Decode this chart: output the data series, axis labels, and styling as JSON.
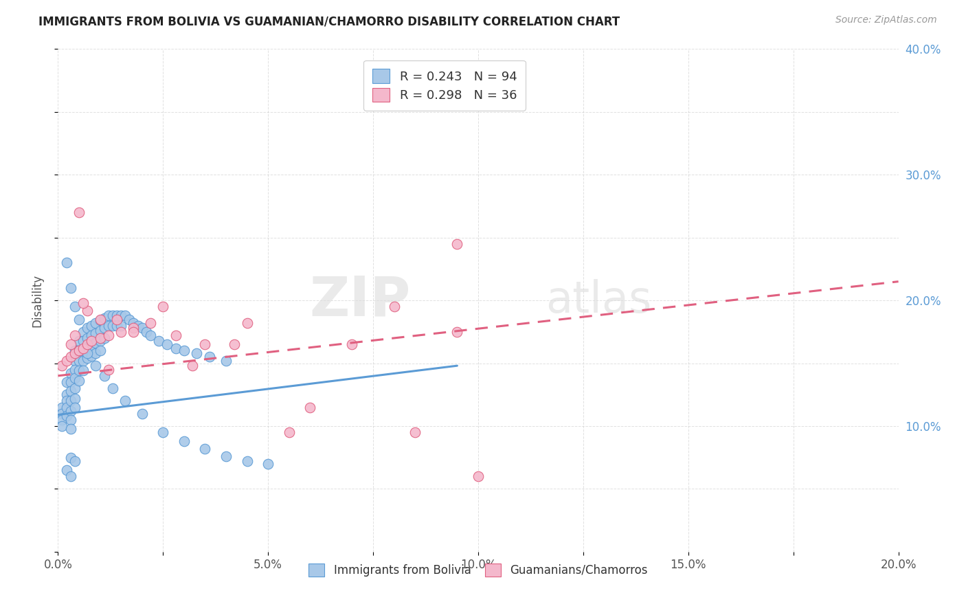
{
  "title": "IMMIGRANTS FROM BOLIVIA VS GUAMANIAN/CHAMORRO DISABILITY CORRELATION CHART",
  "source": "Source: ZipAtlas.com",
  "ylabel": "Disability",
  "xlim": [
    0.0,
    0.2
  ],
  "ylim": [
    0.0,
    0.4
  ],
  "watermark_line1": "ZIP",
  "watermark_line2": "atlas",
  "legend_r1": "R = 0.243",
  "legend_n1": "N = 94",
  "legend_r2": "R = 0.298",
  "legend_n2": "N = 36",
  "color_blue_fill": "#a8c8e8",
  "color_blue_edge": "#5b9bd5",
  "color_pink_fill": "#f4b8cc",
  "color_pink_edge": "#e06080",
  "color_line_blue": "#5b9bd5",
  "color_line_pink": "#e06080",
  "bolivia_trend_x": [
    0.0,
    0.095
  ],
  "bolivia_trend_y": [
    0.109,
    0.148
  ],
  "guam_trend_x": [
    0.0,
    0.2
  ],
  "guam_trend_y": [
    0.14,
    0.215
  ],
  "background_color": "#ffffff",
  "grid_color": "#cccccc",
  "bolivia_x": [
    0.001,
    0.001,
    0.001,
    0.001,
    0.002,
    0.002,
    0.002,
    0.002,
    0.002,
    0.003,
    0.003,
    0.003,
    0.003,
    0.003,
    0.003,
    0.003,
    0.004,
    0.004,
    0.004,
    0.004,
    0.004,
    0.004,
    0.004,
    0.005,
    0.005,
    0.005,
    0.005,
    0.005,
    0.006,
    0.006,
    0.006,
    0.006,
    0.006,
    0.007,
    0.007,
    0.007,
    0.007,
    0.008,
    0.008,
    0.008,
    0.008,
    0.009,
    0.009,
    0.009,
    0.009,
    0.01,
    0.01,
    0.01,
    0.01,
    0.011,
    0.011,
    0.011,
    0.012,
    0.012,
    0.013,
    0.013,
    0.014,
    0.014,
    0.015,
    0.015,
    0.016,
    0.017,
    0.018,
    0.019,
    0.02,
    0.021,
    0.022,
    0.024,
    0.026,
    0.028,
    0.03,
    0.033,
    0.036,
    0.04,
    0.002,
    0.003,
    0.004,
    0.005,
    0.007,
    0.009,
    0.011,
    0.013,
    0.016,
    0.02,
    0.025,
    0.03,
    0.035,
    0.04,
    0.045,
    0.05,
    0.003,
    0.004,
    0.002,
    0.003
  ],
  "bolivia_y": [
    0.115,
    0.11,
    0.105,
    0.1,
    0.135,
    0.125,
    0.12,
    0.115,
    0.108,
    0.142,
    0.135,
    0.128,
    0.12,
    0.112,
    0.105,
    0.098,
    0.16,
    0.152,
    0.145,
    0.138,
    0.13,
    0.122,
    0.115,
    0.168,
    0.16,
    0.152,
    0.144,
    0.136,
    0.175,
    0.168,
    0.16,
    0.152,
    0.144,
    0.178,
    0.17,
    0.162,
    0.154,
    0.18,
    0.172,
    0.164,
    0.156,
    0.182,
    0.174,
    0.166,
    0.158,
    0.184,
    0.176,
    0.168,
    0.16,
    0.186,
    0.178,
    0.17,
    0.188,
    0.18,
    0.188,
    0.18,
    0.188,
    0.18,
    0.188,
    0.18,
    0.188,
    0.185,
    0.182,
    0.18,
    0.178,
    0.175,
    0.172,
    0.168,
    0.165,
    0.162,
    0.16,
    0.158,
    0.155,
    0.152,
    0.23,
    0.21,
    0.195,
    0.185,
    0.158,
    0.148,
    0.14,
    0.13,
    0.12,
    0.11,
    0.095,
    0.088,
    0.082,
    0.076,
    0.072,
    0.07,
    0.075,
    0.072,
    0.065,
    0.06
  ],
  "guam_x": [
    0.001,
    0.002,
    0.003,
    0.004,
    0.005,
    0.006,
    0.007,
    0.008,
    0.01,
    0.012,
    0.015,
    0.018,
    0.022,
    0.028,
    0.035,
    0.045,
    0.06,
    0.08,
    0.095,
    0.1,
    0.003,
    0.005,
    0.007,
    0.01,
    0.014,
    0.018,
    0.025,
    0.032,
    0.042,
    0.055,
    0.07,
    0.085,
    0.095,
    0.004,
    0.006,
    0.012
  ],
  "guam_y": [
    0.148,
    0.152,
    0.155,
    0.158,
    0.16,
    0.162,
    0.165,
    0.168,
    0.17,
    0.172,
    0.175,
    0.178,
    0.182,
    0.172,
    0.165,
    0.182,
    0.115,
    0.195,
    0.175,
    0.06,
    0.165,
    0.27,
    0.192,
    0.185,
    0.185,
    0.175,
    0.195,
    0.148,
    0.165,
    0.095,
    0.165,
    0.095,
    0.245,
    0.172,
    0.198,
    0.145
  ]
}
